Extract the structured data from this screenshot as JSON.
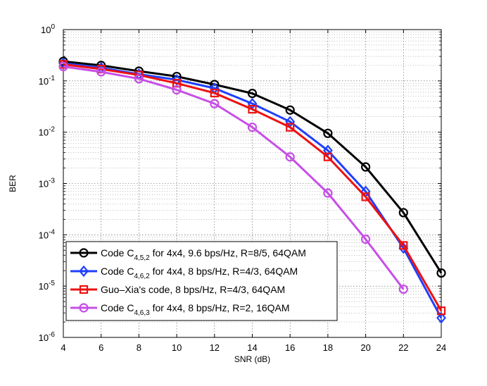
{
  "chart_data": {
    "type": "line",
    "xlabel": "SNR (dB)",
    "ylabel": "BER",
    "yscale": "log",
    "xlim": [
      4,
      24
    ],
    "ylim": [
      1e-06,
      1
    ],
    "grid": true,
    "legend_location": "bottom-left",
    "x_ticks": [
      "4",
      "6",
      "8",
      "10",
      "12",
      "14",
      "16",
      "18",
      "20",
      "22",
      "24"
    ],
    "y_ticks": [
      {
        "base": "10",
        "exp": "0"
      },
      {
        "base": "10",
        "exp": "-1"
      },
      {
        "base": "10",
        "exp": "-2"
      },
      {
        "base": "10",
        "exp": "-3"
      },
      {
        "base": "10",
        "exp": "-4"
      },
      {
        "base": "10",
        "exp": "-5"
      },
      {
        "base": "10",
        "exp": "-6"
      }
    ],
    "series": [
      {
        "name": "Code C_{4,5,2} for 4x4, 9.6 bps/Hz, R=8/5, 64QAM",
        "legend_parts": [
          "Code C",
          "4,5,2",
          " for 4x4,  9.6 bps/Hz, R=8/5, 64QAM"
        ],
        "color": "#000000",
        "marker": "circle",
        "x": [
          4,
          6,
          8,
          10,
          12,
          14,
          16,
          18,
          20,
          22,
          24
        ],
        "y": [
          0.24,
          0.2,
          0.155,
          0.122,
          0.085,
          0.057,
          0.027,
          0.0095,
          0.0021,
          0.00027,
          1.8e-05
        ]
      },
      {
        "name": "Code C_{4,6,2} for 4x4, 8 bps/Hz, R=4/3, 64QAM",
        "legend_parts": [
          "Code C",
          "4,6,2",
          " for 4x4,  8 bps/Hz, R=4/3, 64QAM"
        ],
        "color": "#1f3fff",
        "marker": "diamond",
        "x": [
          4,
          6,
          8,
          10,
          12,
          14,
          16,
          18,
          20,
          22,
          24
        ],
        "y": [
          0.22,
          0.18,
          0.135,
          0.105,
          0.072,
          0.036,
          0.016,
          0.0044,
          0.0007,
          5.5e-05,
          2.4e-06
        ]
      },
      {
        "name": "Guo-Xia's code, 8 bps/Hz, R=4/3, 64QAM",
        "legend_parts": [
          "Guo–Xia's code, 8 bps/Hz, R=4/3, 64QAM",
          "",
          ""
        ],
        "color": "#ee1111",
        "marker": "square",
        "x": [
          4,
          6,
          8,
          10,
          12,
          14,
          16,
          18,
          20,
          22,
          24
        ],
        "y": [
          0.21,
          0.17,
          0.13,
          0.09,
          0.058,
          0.028,
          0.0125,
          0.0033,
          0.00055,
          6.2e-05,
          3.3e-06
        ]
      },
      {
        "name": "Code C_{4,6,3} for 4x4, 8 bps/Hz, R=2, 16QAM",
        "legend_parts": [
          "Code C",
          "4,6,3",
          " for 4x4,  8 bps/Hz, R=2, 16QAM"
        ],
        "color": "#c64fe6",
        "marker": "circle",
        "x": [
          4,
          6,
          8,
          10,
          12,
          14,
          16,
          18,
          20,
          22
        ],
        "y": [
          0.19,
          0.15,
          0.11,
          0.067,
          0.036,
          0.0125,
          0.0033,
          0.00065,
          8.2e-05,
          8.7e-06
        ]
      }
    ]
  }
}
